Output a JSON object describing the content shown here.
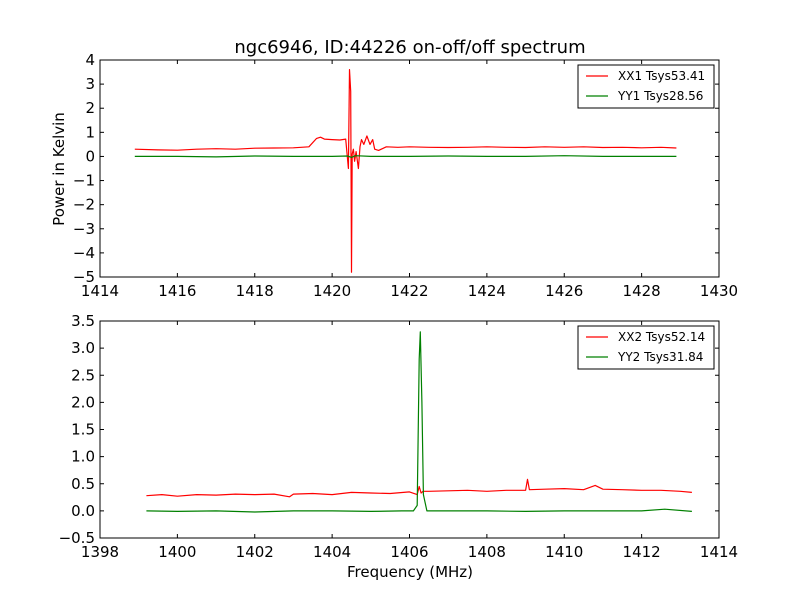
{
  "chart_data": [
    {
      "type": "line",
      "title": "ngc6946, ID:44226 on-off/off spectrum",
      "xlabel": "",
      "ylabel": "Power in Kelvin",
      "xlim": [
        1414,
        1430
      ],
      "ylim": [
        -5,
        4
      ],
      "xticks": [
        1414,
        1416,
        1418,
        1420,
        1422,
        1424,
        1426,
        1428,
        1430
      ],
      "yticks": [
        -5,
        -4,
        -3,
        -2,
        -1,
        0,
        1,
        2,
        3,
        4
      ],
      "grid": false,
      "legend": "top-right",
      "series": [
        {
          "name": "XX1 Tsys53.41",
          "color": "#ff0000",
          "x": [
            1414.9,
            1415.5,
            1416.0,
            1416.5,
            1417.0,
            1417.5,
            1418.0,
            1418.5,
            1419.0,
            1419.4,
            1419.6,
            1419.7,
            1419.8,
            1420.0,
            1420.2,
            1420.35,
            1420.42,
            1420.45,
            1420.48,
            1420.5,
            1420.52,
            1420.55,
            1420.58,
            1420.62,
            1420.68,
            1420.72,
            1420.76,
            1420.82,
            1420.9,
            1420.98,
            1421.05,
            1421.1,
            1421.2,
            1421.4,
            1421.7,
            1422.0,
            1422.5,
            1423.0,
            1423.5,
            1424.0,
            1424.5,
            1425.0,
            1425.5,
            1426.0,
            1426.5,
            1427.0,
            1427.5,
            1428.0,
            1428.5,
            1428.9
          ],
          "y": [
            0.3,
            0.27,
            0.26,
            0.3,
            0.32,
            0.3,
            0.34,
            0.35,
            0.36,
            0.4,
            0.75,
            0.8,
            0.72,
            0.7,
            0.68,
            0.72,
            -0.5,
            3.6,
            2.7,
            -4.8,
            0.1,
            0.3,
            -0.2,
            0.2,
            -0.5,
            0.4,
            0.7,
            0.5,
            0.85,
            0.5,
            0.7,
            0.3,
            0.25,
            0.4,
            0.38,
            0.4,
            0.38,
            0.37,
            0.38,
            0.4,
            0.38,
            0.37,
            0.4,
            0.38,
            0.4,
            0.37,
            0.38,
            0.36,
            0.38,
            0.35
          ]
        },
        {
          "name": "YY1 Tsys28.56",
          "color": "#008000",
          "x": [
            1414.9,
            1416.0,
            1417.0,
            1418.0,
            1419.0,
            1420.0,
            1420.4,
            1420.5,
            1420.6,
            1421.0,
            1422.0,
            1423.0,
            1424.0,
            1425.0,
            1426.0,
            1427.0,
            1428.0,
            1428.9
          ],
          "y": [
            0.0,
            0.0,
            -0.02,
            0.02,
            0.0,
            0.0,
            0.02,
            -0.04,
            0.03,
            0.0,
            0.0,
            0.02,
            0.0,
            0.0,
            0.03,
            0.0,
            0.0,
            0.0
          ]
        }
      ]
    },
    {
      "type": "line",
      "title": "",
      "xlabel": "Frequency (MHz)",
      "ylabel": "",
      "xlim": [
        1398,
        1414
      ],
      "ylim": [
        -0.5,
        3.5
      ],
      "xticks": [
        1398,
        1400,
        1402,
        1404,
        1406,
        1408,
        1410,
        1412,
        1414
      ],
      "yticks": [
        -0.5,
        0.0,
        0.5,
        1.0,
        1.5,
        2.0,
        2.5,
        3.0,
        3.5
      ],
      "ytick_labels": [
        "−0.5",
        "0.0",
        "0.5",
        "1.0",
        "1.5",
        "2.0",
        "2.5",
        "3.0",
        "3.5"
      ],
      "grid": false,
      "legend": "top-right",
      "series": [
        {
          "name": "XX2 Tsys52.14",
          "color": "#ff0000",
          "x": [
            1399.2,
            1399.6,
            1400.0,
            1400.5,
            1401.0,
            1401.5,
            1402.0,
            1402.5,
            1402.9,
            1403.0,
            1403.5,
            1404.0,
            1404.5,
            1405.0,
            1405.5,
            1406.0,
            1406.2,
            1406.25,
            1406.3,
            1406.35,
            1406.5,
            1407.0,
            1407.5,
            1408.0,
            1408.5,
            1409.0,
            1409.05,
            1409.1,
            1409.5,
            1410.0,
            1410.5,
            1410.8,
            1411.0,
            1411.5,
            1412.0,
            1412.5,
            1413.0,
            1413.3
          ],
          "y": [
            0.28,
            0.3,
            0.27,
            0.3,
            0.29,
            0.31,
            0.3,
            0.31,
            0.26,
            0.31,
            0.32,
            0.3,
            0.34,
            0.33,
            0.32,
            0.35,
            0.3,
            0.45,
            0.33,
            0.36,
            0.36,
            0.37,
            0.38,
            0.36,
            0.38,
            0.38,
            0.58,
            0.39,
            0.4,
            0.41,
            0.39,
            0.47,
            0.4,
            0.39,
            0.38,
            0.38,
            0.36,
            0.34
          ]
        },
        {
          "name": "YY2 Tsys31.84",
          "color": "#008000",
          "x": [
            1399.2,
            1400.0,
            1401.0,
            1402.0,
            1403.0,
            1404.0,
            1405.0,
            1405.8,
            1406.1,
            1406.2,
            1406.25,
            1406.28,
            1406.32,
            1406.36,
            1406.45,
            1407.0,
            1408.0,
            1409.0,
            1410.0,
            1411.0,
            1412.0,
            1412.6,
            1413.3
          ],
          "y": [
            0.0,
            -0.01,
            0.0,
            -0.02,
            0.0,
            0.0,
            -0.01,
            0.0,
            0.0,
            0.1,
            2.8,
            3.3,
            2.0,
            0.3,
            0.0,
            0.0,
            0.0,
            -0.01,
            0.0,
            0.0,
            0.0,
            0.03,
            -0.01
          ]
        }
      ]
    }
  ]
}
